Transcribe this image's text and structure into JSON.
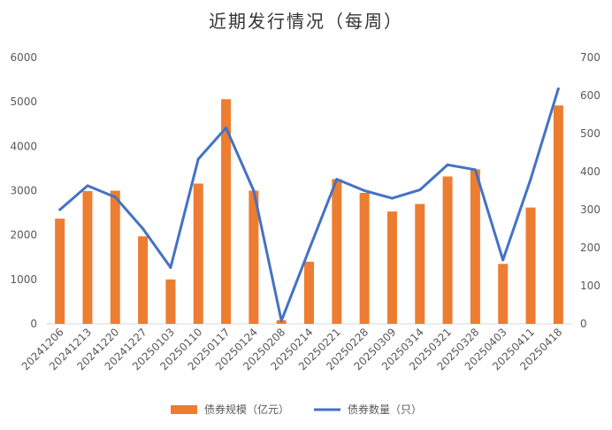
{
  "chart_data": {
    "type": "bar",
    "title": "近期发行情况（每周）",
    "categories": [
      "20241206",
      "20241213",
      "20241220",
      "20241227",
      "20250103",
      "20250110",
      "20250117",
      "20250124",
      "20250208",
      "20250214",
      "20250221",
      "20250228",
      "20250309",
      "20250314",
      "20250321",
      "20250328",
      "20250403",
      "20250411",
      "20250418"
    ],
    "series": [
      {
        "name": "债券规模（亿元）",
        "type": "bar",
        "axis": "left",
        "color": "#ED7D31",
        "values": [
          2370,
          2990,
          3000,
          1970,
          1000,
          3160,
          5060,
          3000,
          80,
          1400,
          3260,
          2950,
          2530,
          2700,
          3320,
          3480,
          1350,
          2620,
          4920
        ]
      },
      {
        "name": "债券数量（只）",
        "type": "line",
        "axis": "right",
        "color": "#4472C4",
        "values": [
          300,
          363,
          333,
          250,
          148,
          433,
          515,
          350,
          8,
          195,
          380,
          350,
          330,
          352,
          418,
          405,
          168,
          380,
          618
        ]
      }
    ],
    "ylim_left": [
      0,
      6000
    ],
    "yticks_left": [
      0,
      1000,
      2000,
      3000,
      4000,
      5000,
      6000
    ],
    "ylim_right": [
      0,
      700
    ],
    "yticks_right": [
      0,
      100,
      200,
      300,
      400,
      500,
      600,
      700
    ],
    "grid": false,
    "legend": "bottom"
  }
}
